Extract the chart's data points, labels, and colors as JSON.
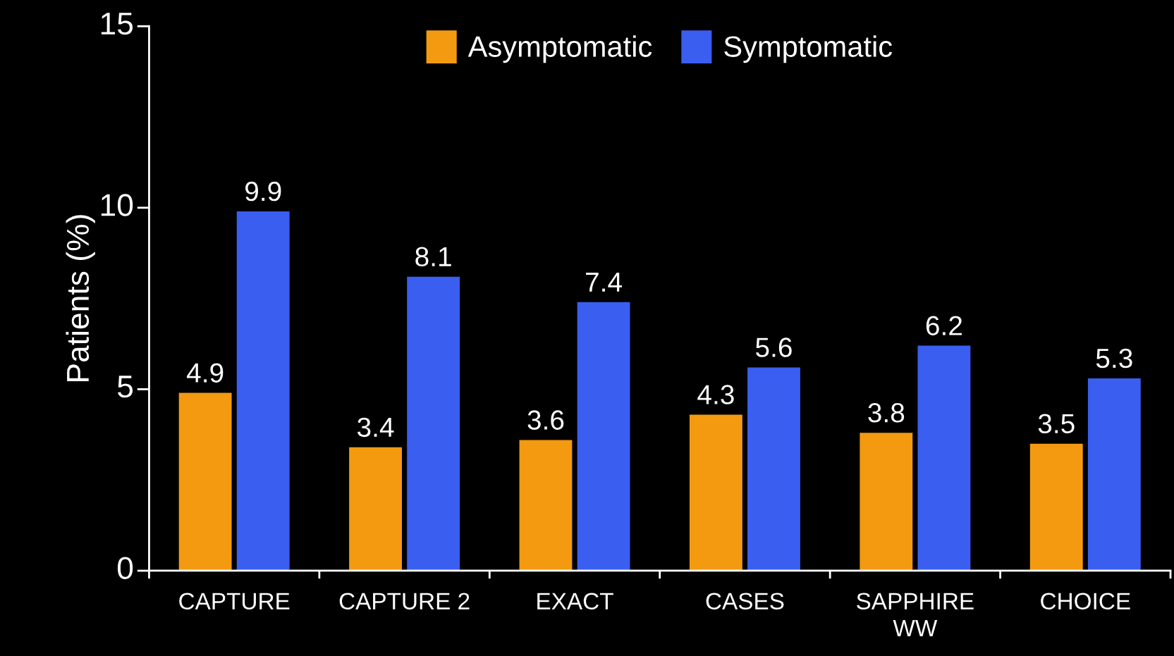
{
  "chart_data": {
    "type": "bar",
    "ylabel": "Patients (%)",
    "categories": [
      "CAPTURE",
      "CAPTURE 2",
      "EXACT",
      "CASES",
      "SAPPHIRE\nWW",
      "CHOICE"
    ],
    "series": [
      {
        "name": "Asymptomatic",
        "color": "#f39a10",
        "values": [
          4.9,
          3.4,
          3.6,
          4.3,
          3.8,
          3.5
        ]
      },
      {
        "name": "Symptomatic",
        "color": "#3a5ef0",
        "values": [
          9.9,
          8.1,
          7.4,
          5.6,
          6.2,
          5.3
        ]
      }
    ],
    "ylim": [
      0,
      15
    ],
    "yticks": [
      0,
      5,
      10,
      15
    ],
    "data_labels": true,
    "legend": "top",
    "grid": false
  }
}
